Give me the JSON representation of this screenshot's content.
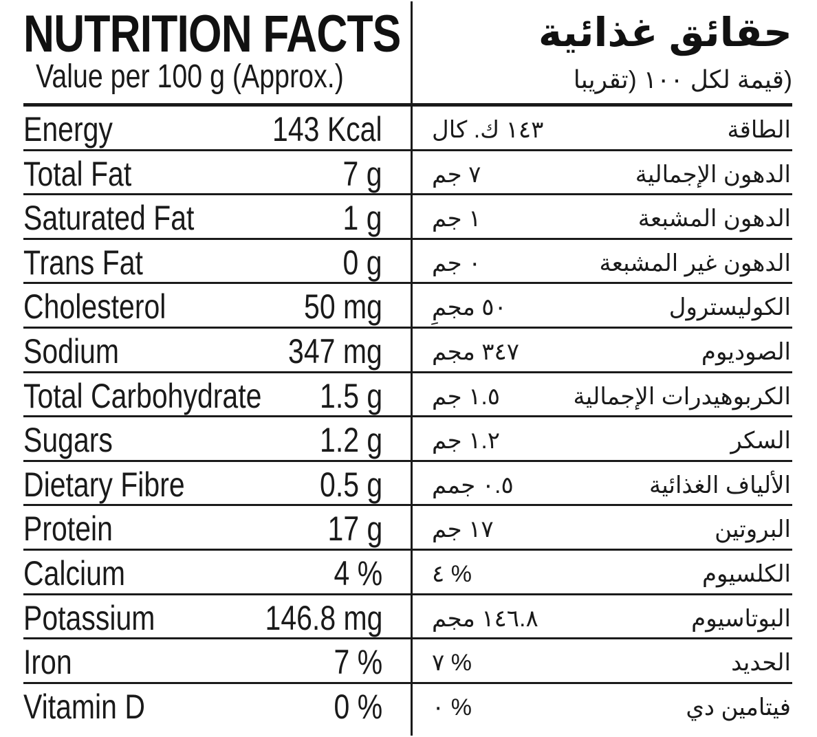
{
  "title_en": "NUTRITION FACTS",
  "subtitle_en": "Value per 100 g (Approx.)",
  "title_ar": "حقائق غذائية",
  "subtitle_ar": "(قيمة لكل ١٠٠ (تقريبا",
  "nutrients": [
    {
      "name_en": "Energy",
      "value_en": "143 Kcal",
      "value_ar": "١٤٣ ك. كال",
      "name_ar": "الطاقة"
    },
    {
      "name_en": "Total Fat",
      "value_en": "7 g",
      "value_ar": "٧ جم",
      "name_ar": "الدهون الإجمالية"
    },
    {
      "name_en": "Saturated Fat",
      "value_en": "1 g",
      "value_ar": "١ جم",
      "name_ar": "الدهون المشبعة"
    },
    {
      "name_en": "Trans Fat",
      "value_en": "0 g",
      "value_ar": "٠ جم",
      "name_ar": "الدهون غير المشبعة"
    },
    {
      "name_en": "Cholesterol",
      "value_en": "50 mg",
      "value_ar": "٥٠ مجمِ",
      "name_ar": "الكوليسترول"
    },
    {
      "name_en": "Sodium",
      "value_en": "347 mg",
      "value_ar": "٣٤٧ مجم",
      "name_ar": "الصوديوم"
    },
    {
      "name_en": "Total Carbohydrate",
      "value_en": "1.5 g",
      "value_ar": "١.٥ جم",
      "name_ar": "الكربوهيدرات الإجمالية"
    },
    {
      "name_en": "Sugars",
      "value_en": "1.2 g",
      "value_ar": "١.٢ جم",
      "name_ar": "السكر"
    },
    {
      "name_en": "Dietary Fibre",
      "value_en": "0.5 g",
      "value_ar": "٠.٥ جمم",
      "name_ar": "الألياف الغذائية"
    },
    {
      "name_en": "Protein",
      "value_en": "17 g",
      "value_ar": "١٧ جم",
      "name_ar": "البروتين"
    },
    {
      "name_en": "Calcium",
      "value_en": "4 %",
      "value_ar": "٤ %",
      "name_ar": "الكلسيوم"
    },
    {
      "name_en": "Potassium",
      "value_en": "146.8 mg",
      "value_ar": "١٤٦.٨ مجم",
      "name_ar": "البوتاسيوم"
    },
    {
      "name_en": "Iron",
      "value_en": "7 %",
      "value_ar": "٧ %",
      "name_ar": "الحديد"
    },
    {
      "name_en": "Vitamin D",
      "value_en": "0 %",
      "value_ar": "٠ %",
      "name_ar": "فيتامين دي"
    }
  ]
}
